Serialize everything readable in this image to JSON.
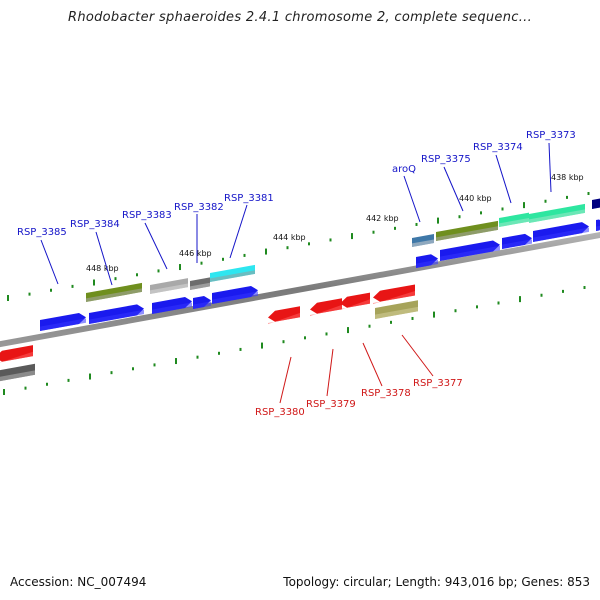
{
  "title": "Rhodobacter sphaeroides 2.4.1 chromosome 2, complete sequenc...",
  "footer": {
    "accession": "Accession: NC_007494",
    "stats": "Topology: circular; Length: 943,016 bp; Genes: 853"
  },
  "colors": {
    "forward_cds": "#1a1aee",
    "reverse_cds": "#e81515",
    "forward_label": "#1515c8",
    "reverse_label": "#d01818",
    "backbone": "#8c8c8c",
    "tick": "#1f8a1f"
  },
  "kbp_labels": [
    "448 kbp",
    "446 kbp",
    "444 kbp",
    "442 kbp",
    "440 kbp",
    "438 kbp"
  ],
  "forward_gene_labels": [
    "RSP_3385",
    "RSP_3384",
    "RSP_3383",
    "RSP_3382",
    "RSP_3381",
    "aroQ",
    "RSP_3375",
    "RSP_3374",
    "RSP_3373"
  ],
  "reverse_gene_labels": [
    "RSP_3380",
    "RSP_3379",
    "RSP_3378",
    "RSP_3377"
  ]
}
